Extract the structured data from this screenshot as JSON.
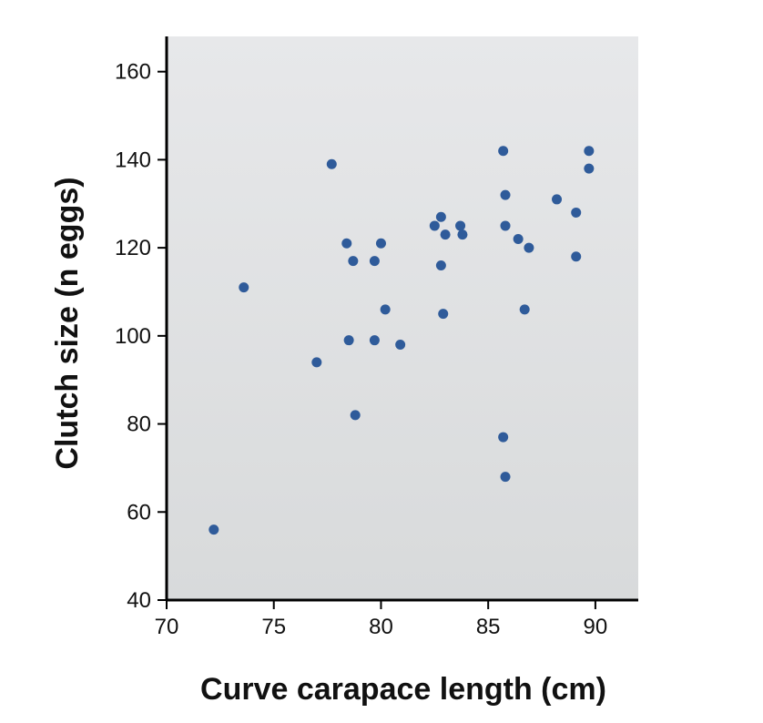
{
  "chart_data": {
    "type": "scatter",
    "title": "",
    "xlabel": "Curve carapace length (cm)",
    "ylabel": "Clutch size (n eggs)",
    "xlim": [
      70,
      92
    ],
    "ylim": [
      40,
      168
    ],
    "xticks": [
      "70",
      "75",
      "80",
      "85",
      "90"
    ],
    "yticks": [
      "40",
      "60",
      "80",
      "100",
      "120",
      "140",
      "160"
    ],
    "grid": false,
    "legend": "none",
    "background_gradient": [
      "#e7e8ea",
      "#d8dadb"
    ],
    "point_color": "#2f5b9a",
    "series": [
      {
        "x": [
          72.2,
          73.6,
          77.0,
          77.7,
          78.4,
          78.5,
          78.7,
          78.8,
          79.7,
          79.7,
          80.0,
          80.2,
          80.9,
          82.5,
          82.8,
          82.8,
          82.9,
          83.0,
          83.7,
          83.8,
          85.7,
          85.7,
          85.8,
          85.8,
          85.8,
          86.4,
          86.7,
          86.9,
          88.2,
          89.1,
          89.1,
          89.7,
          89.7
        ],
        "y": [
          56,
          111,
          94,
          139,
          121,
          99,
          117,
          82,
          117,
          99,
          121,
          106,
          98,
          125,
          127,
          116,
          105,
          123,
          125,
          123,
          142,
          77,
          68,
          132,
          125,
          122,
          106,
          120,
          131,
          118,
          128,
          142,
          138
        ]
      }
    ]
  }
}
